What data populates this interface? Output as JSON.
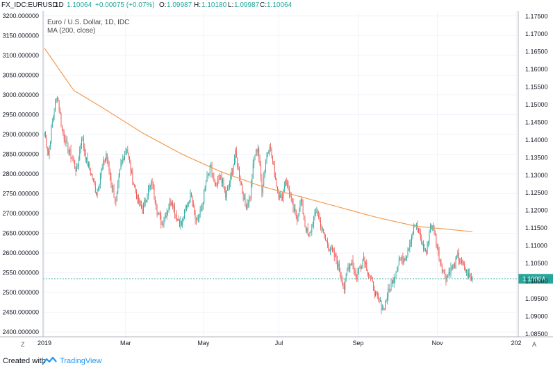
{
  "header": {
    "symbol": "FX_IDC:EURUSD",
    "interval": "1D",
    "last": "1.10064",
    "change": "+0.00075 (+0.07%)",
    "o_label": "O:",
    "o_value": "1.09987",
    "h_label": "H:",
    "h_value": "1.10180",
    "l_label": "L:",
    "l_value": "1.09987",
    "c_label": "C:",
    "c_value": "1.10064",
    "up_color": "#26a69a",
    "down_color": "#ef5350"
  },
  "legend": {
    "series_title": "Euro / U.S. Dollar, 1D, IDC",
    "indicator": "MA (200, close)"
  },
  "last_price_label": "1.10064",
  "footer": {
    "created_with": "Created with",
    "brand": "TradingView"
  },
  "axis_buttons": {
    "left": "Z",
    "right": "A"
  },
  "chart_data": {
    "type": "candlestick",
    "left_axis": {
      "ticks": [
        "3200.000000",
        "3150.000000",
        "3100.000000",
        "3050.000000",
        "3000.000000",
        "2950.000000",
        "2900.000000",
        "2850.000000",
        "2800.000000",
        "2750.000000",
        "2700.000000",
        "2650.000000",
        "2600.000000",
        "2550.000000",
        "2500.000000",
        "2450.000000",
        "2400.000000"
      ],
      "range": [
        2388,
        3212
      ]
    },
    "right_axis": {
      "ticks": [
        "1.17500",
        "1.17000",
        "1.16500",
        "1.16000",
        "1.15500",
        "1.15000",
        "1.14500",
        "1.14000",
        "1.13500",
        "1.13000",
        "1.12500",
        "1.12000",
        "1.11500",
        "1.11000",
        "1.10500",
        "1.10000",
        "1.09500",
        "1.09000",
        "1.08500"
      ],
      "range": [
        1.0842,
        1.1765
      ]
    },
    "x_axis": {
      "ticks": [
        "2019",
        "Mar",
        "May",
        "Jul",
        "Sep",
        "Nov",
        "202"
      ]
    },
    "anchors": [
      [
        0,
        1.142
      ],
      [
        4,
        1.136
      ],
      [
        9,
        1.147
      ],
      [
        13,
        1.153
      ],
      [
        18,
        1.143
      ],
      [
        23,
        1.138
      ],
      [
        28,
        1.135
      ],
      [
        33,
        1.131
      ],
      [
        38,
        1.141
      ],
      [
        43,
        1.134
      ],
      [
        48,
        1.13
      ],
      [
        53,
        1.125
      ],
      [
        58,
        1.131
      ],
      [
        63,
        1.136
      ],
      [
        68,
        1.128
      ],
      [
        73,
        1.122
      ],
      [
        78,
        1.133
      ],
      [
        84,
        1.138
      ],
      [
        89,
        1.13
      ],
      [
        95,
        1.123
      ],
      [
        100,
        1.12
      ],
      [
        105,
        1.125
      ],
      [
        110,
        1.128
      ],
      [
        115,
        1.12
      ],
      [
        120,
        1.116
      ],
      [
        125,
        1.12
      ],
      [
        130,
        1.123
      ],
      [
        135,
        1.118
      ],
      [
        140,
        1.116
      ],
      [
        145,
        1.121
      ],
      [
        150,
        1.125
      ],
      [
        155,
        1.117
      ],
      [
        160,
        1.12
      ],
      [
        165,
        1.128
      ],
      [
        170,
        1.132
      ],
      [
        175,
        1.126
      ],
      [
        180,
        1.13
      ],
      [
        185,
        1.124
      ],
      [
        190,
        1.129
      ],
      [
        195,
        1.136
      ],
      [
        200,
        1.129
      ],
      [
        205,
        1.121
      ],
      [
        210,
        1.124
      ],
      [
        214,
        1.135
      ],
      [
        218,
        1.138
      ],
      [
        222,
        1.126
      ],
      [
        226,
        1.134
      ],
      [
        230,
        1.139
      ],
      [
        234,
        1.132
      ],
      [
        238,
        1.126
      ],
      [
        242,
        1.123
      ],
      [
        246,
        1.129
      ],
      [
        250,
        1.125
      ],
      [
        254,
        1.12
      ],
      [
        258,
        1.118
      ],
      [
        262,
        1.123
      ],
      [
        266,
        1.116
      ],
      [
        270,
        1.112
      ],
      [
        274,
        1.117
      ],
      [
        278,
        1.12
      ],
      [
        282,
        1.116
      ],
      [
        286,
        1.112
      ],
      [
        290,
        1.11
      ],
      [
        294,
        1.108
      ],
      [
        298,
        1.106
      ],
      [
        302,
        1.102
      ],
      [
        306,
        1.098
      ],
      [
        310,
        1.104
      ],
      [
        314,
        1.106
      ],
      [
        318,
        1.101
      ],
      [
        322,
        1.104
      ],
      [
        326,
        1.107
      ],
      [
        330,
        1.103
      ],
      [
        334,
        1.1
      ],
      [
        338,
        1.096
      ],
      [
        342,
        1.094
      ],
      [
        346,
        1.092
      ],
      [
        350,
        1.096
      ],
      [
        354,
        1.099
      ],
      [
        358,
        1.102
      ],
      [
        362,
        1.106
      ],
      [
        366,
        1.106
      ],
      [
        370,
        1.108
      ],
      [
        374,
        1.112
      ],
      [
        378,
        1.116
      ],
      [
        382,
        1.114
      ],
      [
        386,
        1.11
      ],
      [
        390,
        1.108
      ],
      [
        394,
        1.116
      ],
      [
        398,
        1.114
      ],
      [
        402,
        1.108
      ],
      [
        406,
        1.104
      ],
      [
        410,
        1.101
      ],
      [
        414,
        1.103
      ],
      [
        418,
        1.104
      ],
      [
        422,
        1.107
      ],
      [
        426,
        1.105
      ],
      [
        430,
        1.103
      ],
      [
        434,
        1.101
      ],
      [
        437,
        1.1006
      ]
    ],
    "ma_200": [
      [
        0,
        1.166
      ],
      [
        30,
        1.154
      ],
      [
        60,
        1.149
      ],
      [
        100,
        1.142
      ],
      [
        140,
        1.136
      ],
      [
        180,
        1.131
      ],
      [
        220,
        1.127
      ],
      [
        260,
        1.124
      ],
      [
        300,
        1.121
      ],
      [
        340,
        1.118
      ],
      [
        380,
        1.1155
      ],
      [
        400,
        1.115
      ],
      [
        437,
        1.114
      ]
    ],
    "last_price": 1.10064,
    "grid": true,
    "colors": {
      "up": "#26a69a",
      "down": "#ef5350",
      "ma": "#f39c52",
      "last_line": "#26a69a"
    }
  }
}
